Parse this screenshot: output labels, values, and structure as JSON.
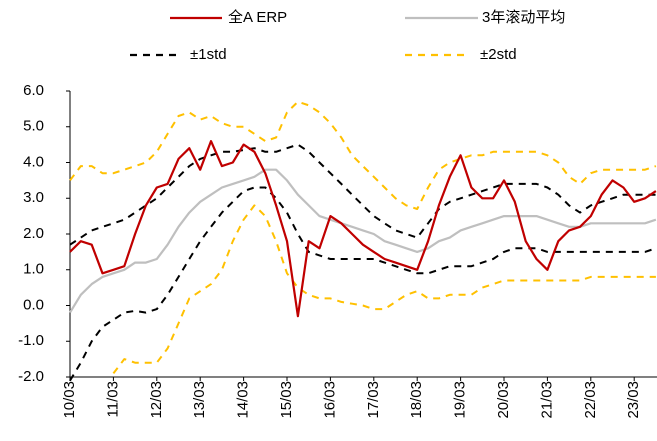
{
  "chart_data": {
    "type": "line",
    "categories": [
      "10/03",
      null,
      null,
      null,
      "11/03",
      null,
      null,
      null,
      "12/03",
      null,
      null,
      null,
      "13/03",
      null,
      null,
      null,
      "14/03",
      null,
      null,
      null,
      "15/03",
      null,
      null,
      null,
      "16/03",
      null,
      null,
      null,
      "17/03",
      null,
      null,
      null,
      "18/03",
      null,
      null,
      null,
      "19/03",
      null,
      null,
      null,
      "20/03",
      null,
      null,
      null,
      "21/03",
      null,
      null,
      null,
      "22/03",
      null,
      null,
      null,
      "23/03",
      null,
      null
    ],
    "ylim": [
      -2,
      6
    ],
    "yticks": [
      {
        "value": -2,
        "label": "-2.0"
      },
      {
        "value": -1,
        "label": "-1.0"
      },
      {
        "value": 0,
        "label": "0.0"
      },
      {
        "value": 1,
        "label": "1.0"
      },
      {
        "value": 2,
        "label": "2.0"
      },
      {
        "value": 3,
        "label": "3.0"
      },
      {
        "value": 4,
        "label": "4.0"
      },
      {
        "value": 5,
        "label": "5.0"
      },
      {
        "value": 6,
        "label": "6.0"
      }
    ],
    "series": [
      {
        "name": "全A ERP",
        "color": "#c00000",
        "dashed": false,
        "values": [
          1.5,
          1.8,
          1.7,
          0.9,
          1.0,
          1.1,
          2.0,
          2.8,
          3.3,
          3.4,
          4.1,
          4.4,
          3.8,
          4.6,
          3.9,
          4.0,
          4.5,
          4.3,
          3.7,
          2.8,
          1.8,
          -0.3,
          1.8,
          1.6,
          2.5,
          2.3,
          2.0,
          1.7,
          1.5,
          1.3,
          1.2,
          1.1,
          1.0,
          1.8,
          2.8,
          3.6,
          4.2,
          3.3,
          3.0,
          3.0,
          3.5,
          2.9,
          1.8,
          1.3,
          1.0,
          1.8,
          2.1,
          2.2,
          2.5,
          3.1,
          3.5,
          3.3,
          2.9,
          3.0,
          3.2
        ]
      },
      {
        "name": "3年滚动平均",
        "color": "#bfbfbf",
        "dashed": false,
        "values": [
          -0.2,
          0.3,
          0.6,
          0.8,
          0.9,
          1.0,
          1.2,
          1.2,
          1.3,
          1.7,
          2.2,
          2.6,
          2.9,
          3.1,
          3.3,
          3.4,
          3.5,
          3.6,
          3.8,
          3.8,
          3.5,
          3.1,
          2.8,
          2.5,
          2.4,
          2.3,
          2.2,
          2.1,
          2.0,
          1.8,
          1.7,
          1.6,
          1.5,
          1.6,
          1.8,
          1.9,
          2.1,
          2.2,
          2.3,
          2.4,
          2.5,
          2.5,
          2.5,
          2.5,
          2.4,
          2.3,
          2.2,
          2.2,
          2.3,
          2.3,
          2.3,
          2.3,
          2.3,
          2.3,
          2.4
        ]
      },
      {
        "name": "±1std",
        "color": "#000000",
        "dashed": true,
        "values": [
          1.7,
          1.9,
          2.1,
          2.2,
          2.3,
          2.4,
          2.6,
          2.8,
          3.0,
          3.3,
          3.6,
          3.9,
          4.1,
          4.2,
          4.3,
          4.3,
          4.35,
          4.4,
          4.3,
          4.3,
          4.4,
          4.5,
          4.3,
          4.0,
          3.7,
          3.4,
          3.1,
          2.8,
          2.5,
          2.3,
          2.1,
          2.0,
          1.9,
          2.3,
          2.7,
          2.9,
          3.0,
          3.1,
          3.2,
          3.3,
          3.4,
          3.4,
          3.4,
          3.4,
          3.3,
          3.1,
          2.8,
          2.6,
          2.8,
          2.9,
          3.0,
          3.1,
          3.1,
          3.1,
          3.1
        ],
        "values_lower": [
          -2.1,
          -1.6,
          -1.0,
          -0.6,
          -0.4,
          -0.2,
          -0.15,
          -0.2,
          -0.1,
          0.3,
          0.8,
          1.3,
          1.8,
          2.2,
          2.6,
          2.9,
          3.2,
          3.3,
          3.3,
          3.0,
          2.6,
          2.0,
          1.5,
          1.4,
          1.3,
          1.3,
          1.3,
          1.3,
          1.3,
          1.2,
          1.1,
          1.0,
          0.9,
          0.9,
          1.0,
          1.1,
          1.1,
          1.1,
          1.2,
          1.3,
          1.5,
          1.6,
          1.6,
          1.6,
          1.5,
          1.5,
          1.5,
          1.5,
          1.5,
          1.5,
          1.5,
          1.5,
          1.5,
          1.5,
          1.6
        ]
      },
      {
        "name": "±2std",
        "color": "#ffc000",
        "dashed": true,
        "values": [
          3.5,
          3.9,
          3.9,
          3.7,
          3.7,
          3.8,
          3.9,
          4.0,
          4.3,
          4.8,
          5.3,
          5.4,
          5.2,
          5.3,
          5.1,
          5.0,
          5.0,
          4.8,
          4.6,
          4.7,
          5.4,
          5.7,
          5.6,
          5.4,
          5.1,
          4.7,
          4.2,
          3.9,
          3.6,
          3.3,
          3.0,
          2.8,
          2.7,
          3.3,
          3.8,
          4.0,
          4.1,
          4.2,
          4.2,
          4.3,
          4.3,
          4.3,
          4.3,
          4.3,
          4.2,
          4.0,
          3.6,
          3.4,
          3.7,
          3.8,
          3.8,
          3.8,
          3.8,
          3.8,
          3.9
        ],
        "values_lower": [
          null,
          null,
          null,
          null,
          -1.9,
          -1.5,
          -1.6,
          -1.6,
          -1.6,
          -1.2,
          -0.5,
          0.2,
          0.4,
          0.6,
          1.0,
          1.8,
          2.4,
          2.8,
          2.5,
          1.8,
          0.9,
          0.5,
          0.3,
          0.2,
          0.2,
          0.1,
          0.05,
          0,
          -0.1,
          -0.1,
          0.1,
          0.3,
          0.4,
          0.2,
          0.2,
          0.3,
          0.3,
          0.3,
          0.5,
          0.6,
          0.7,
          0.7,
          0.7,
          0.7,
          0.7,
          0.7,
          0.7,
          0.7,
          0.8,
          0.8,
          0.8,
          0.8,
          0.8,
          0.8,
          0.8
        ]
      }
    ]
  }
}
